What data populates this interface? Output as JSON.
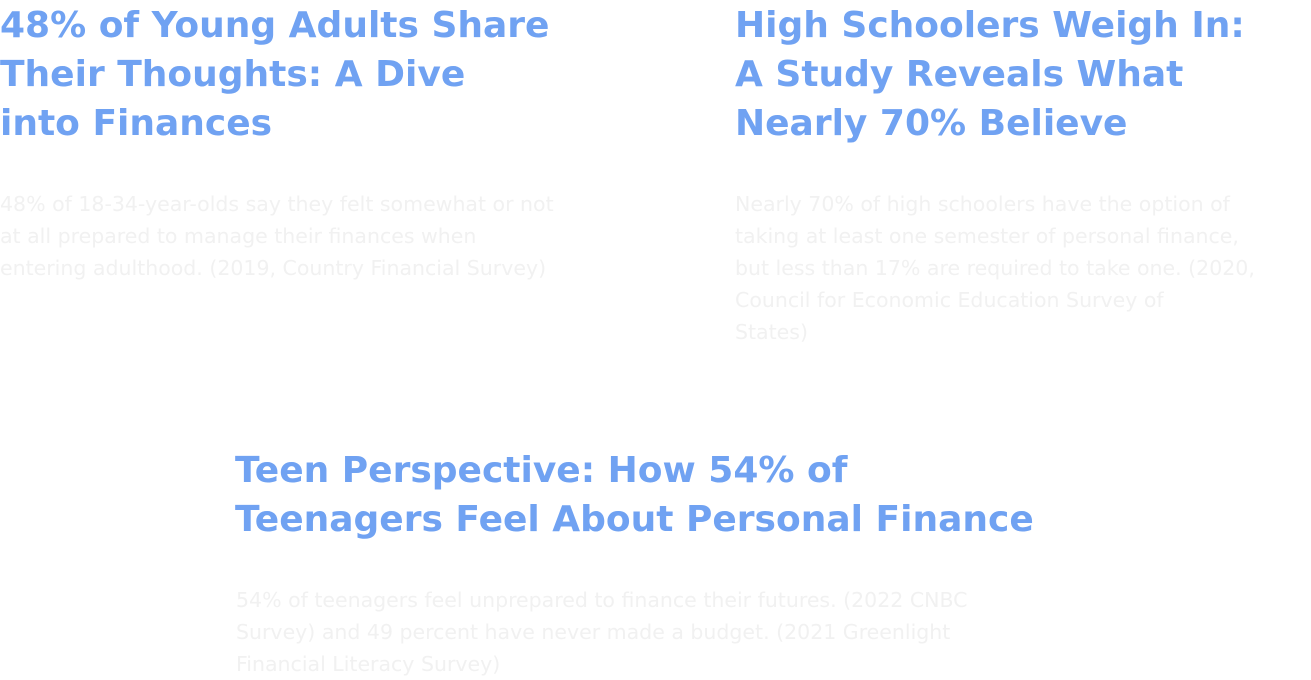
{
  "cards": [
    {
      "title": "48% of Young Adults Share\nTheir Thoughts: A Dive\n into Finances",
      "body": "48% of 18-34-year-olds say they felt somewhat or not\nat all prepared to manage their finances when\nentering adulthood. (2019, Country Financial Survey)"
    },
    {
      "title": "High Schoolers Weigh In:\nA Study Reveals What\nNearly 70% Believe",
      "body": "Nearly 70% of high schoolers have the option of\ntaking at least one semester of personal finance,\nbut less than 17% are required to take one. (2020,\nCouncil for Economic Education Survey of\nStates)"
    },
    {
      "title": "Teen Perspective: How 54% of\nTeenagers Feel About  Personal Finance",
      "body": "54% of teenagers feel unprepared to finance their futures. (2022 CNBC\nSurvey) and 49 percent have never made a budget. (2021 Greenlight\nFinancial Literacy Survey)"
    }
  ],
  "colors": {
    "title": "#70a2f2",
    "body": "#f1f1f1",
    "background": "#ffffff"
  }
}
